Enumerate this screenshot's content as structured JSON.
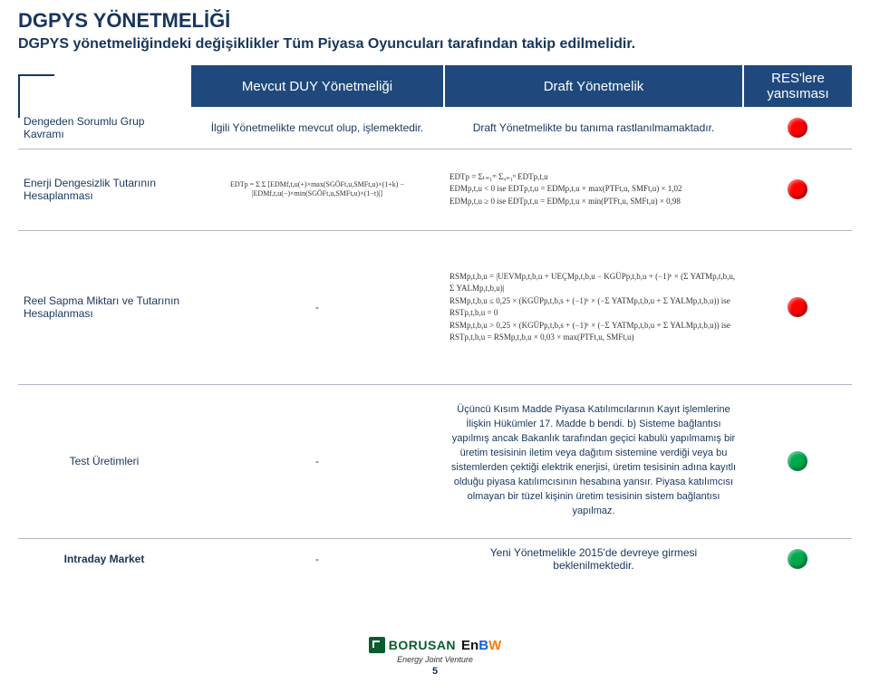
{
  "title": "DGPYS YÖNETMELİĞİ",
  "subtitle": "DGPYS yönetmeliğindeki değişiklikler Tüm Piyasa Oyuncuları tarafından takip edilmelidir.",
  "headers": {
    "col2": "Mevcut DUY Yönetmeliği",
    "col3": "Draft Yönetmelik",
    "col4": "RES'lere yansıması"
  },
  "rows": [
    {
      "label": "Dengeden Sorumlu Grup Kavramı",
      "current": "İlgili Yönetmelikte mevcut olup, işlemektedir.",
      "draft": "Draft Yönetmelikte bu tanıma rastlanılmamaktadır.",
      "status_color": "#ff0000"
    },
    {
      "label": "Enerji Dengesizlik Tutarının Hesaplanması",
      "current_formula": "EDTp = Σ Σ [EDMf,t,u(+)×max(SGÖFt,u,SMFt,u)×(1+k) − |EDMf,t,u(−)×min(SGÖFt,u,SMFt,u)×(1−t)|]",
      "draft_formula": "EDTp = Σₜ₌₁ᵐ Σᵤ₌₁ⁿ EDTp,t,u\nEDMp,t,u < 0 ise EDTp,t,u = EDMp,t,u × max(PTFt,u, SMFt,u) × 1,02\nEDMp,t,u ≥ 0 ise EDTp,t,u = EDMp,t,u × min(PTFt,u, SMFt,u) × 0,98",
      "status_color": "#ff0000"
    },
    {
      "label": "Reel Sapma Miktarı ve Tutarının Hesaplanması",
      "current": "-",
      "draft_formula": "RSMp,t,b,u = |UEVMp,t,b,u + UEÇMp,t,b,u − KGÜPp,t,b,u + (−1)ᵏ × (Σ YATMp,t,b,u, Σ YALMp,t,b,u)|\nRSMp,t,b,u ≤ 0,25 × (KGÜPp,t,b,s + (−1)ᵏ × (−Σ YATMp,t,b,u + Σ YALMp,t,b,u)) ise\nRSTp,t,b,u = 0\nRSMp,t,b,u > 0,25 × (KGÜPp,t,b,s + (−1)ᵏ × (−Σ YATMp,t,b,u + Σ YALMp,t,b,u)) ise\nRSTp,t,b,u = RSMp,t,b,u × 0,03 × max(PTFt,u, SMFt,u)",
      "status_color": "#ff0000"
    },
    {
      "label": "Test Üretimleri",
      "current": "-",
      "draft": "Üçüncü Kısım Madde Piyasa Katılımcılarının Kayıt işlemlerine İlişkin Hükümler 17. Madde b bendi.  b) Sisteme bağlantısı yapılmış ancak Bakanlık tarafından geçici kabulü yapılmamış bir üretim tesisinin iletim veya dağıtım sistemine verdiği veya bu sistemlerden çektiği elektrik enerjisi, üretim tesisinin adına kayıtlı olduğu piyasa katılımcısının hesabına yansır. Piyasa katılımcısı olmayan bir tüzel kişinin üretim tesisinin sistem bağlantısı yapılmaz.",
      "status_color": "#00a84f"
    },
    {
      "label": "Intraday Market",
      "current": "-",
      "draft": "Yeni Yönetmelikle 2015'de devreye girmesi beklenilmektedir.",
      "status_color": "#00a84f"
    }
  ],
  "footer": {
    "brand1": "BORUSAN",
    "brand2_en": "En",
    "brand2_b": "B",
    "brand2_w": "W",
    "jv": "Energy Joint Venture",
    "page": "5"
  },
  "colors": {
    "header_bg": "#1f497d",
    "title_color": "#17365d",
    "border": "#b0b8c4"
  }
}
